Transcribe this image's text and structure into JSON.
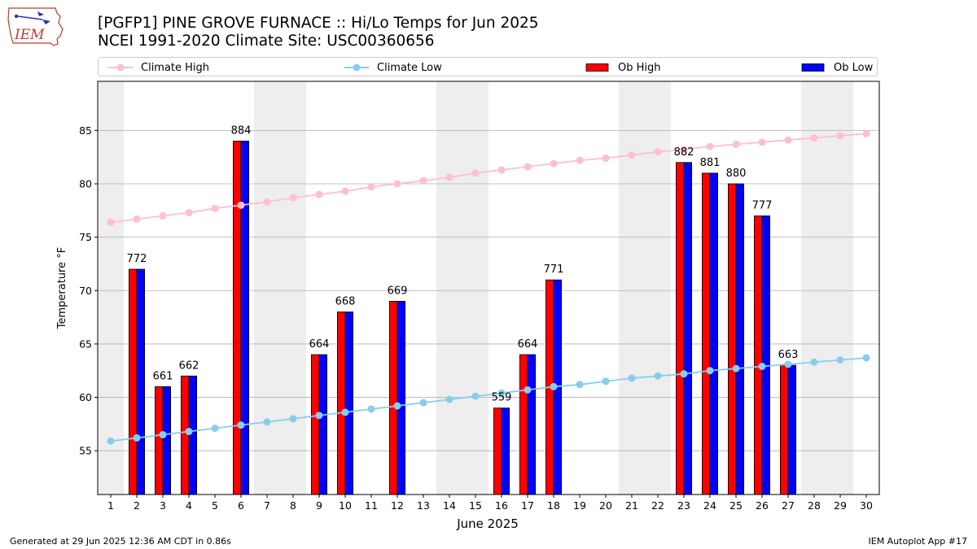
{
  "header": {
    "title_line1": "[PGFP1] PINE GROVE FURNACE :: Hi/Lo Temps for Jun 2025",
    "title_line2": "NCEI 1991-2020 Climate Site: USC00360656"
  },
  "logo": {
    "text": "IEM",
    "icon": "iowa-state-outline-logo"
  },
  "legend": {
    "items": [
      {
        "label": "Climate High",
        "kind": "line",
        "color": "#ffc0cb"
      },
      {
        "label": "Climate Low",
        "kind": "line",
        "color": "#87ceeb"
      },
      {
        "label": "Ob High",
        "kind": "bar",
        "color": "#ff0000"
      },
      {
        "label": "Ob Low",
        "kind": "bar",
        "color": "#0000ff"
      }
    ]
  },
  "footer": {
    "left": "Generated at 29 Jun 2025 12:36 AM CDT in 0.86s",
    "right": "IEM Autoplot App #17"
  },
  "chart_data": {
    "type": "bar",
    "xlabel": "June 2025",
    "ylabel": "Temperature °F",
    "ylim": [
      50.9,
      89.6
    ],
    "xlim": [
      0.5,
      30.5
    ],
    "grid": "horizontal",
    "legend_position": "top",
    "y_ticks": [
      55,
      60,
      65,
      70,
      75,
      80,
      85
    ],
    "days": [
      1,
      2,
      3,
      4,
      5,
      6,
      7,
      8,
      9,
      10,
      11,
      12,
      13,
      14,
      15,
      16,
      17,
      18,
      19,
      20,
      21,
      22,
      23,
      24,
      25,
      26,
      27,
      28,
      29,
      30
    ],
    "weekend_shading": [
      [
        0.5,
        1.5
      ],
      [
        6.5,
        8.5
      ],
      [
        13.5,
        15.5
      ],
      [
        20.5,
        22.5
      ],
      [
        27.5,
        29.5
      ]
    ],
    "shade_color": "#eeeeee",
    "climate_high": [
      76.4,
      76.7,
      77.0,
      77.3,
      77.7,
      78.0,
      78.3,
      78.7,
      79.0,
      79.3,
      79.7,
      80.0,
      80.3,
      80.6,
      81.0,
      81.3,
      81.6,
      81.9,
      82.2,
      82.4,
      82.7,
      83.0,
      83.2,
      83.5,
      83.7,
      83.9,
      84.1,
      84.3,
      84.5,
      84.7
    ],
    "climate_low": [
      55.9,
      56.2,
      56.5,
      56.8,
      57.1,
      57.4,
      57.7,
      58.0,
      58.3,
      58.6,
      58.9,
      59.2,
      59.5,
      59.8,
      60.1,
      60.4,
      60.7,
      61.0,
      61.2,
      61.5,
      61.8,
      62.0,
      62.2,
      62.5,
      62.7,
      62.9,
      63.1,
      63.3,
      63.5,
      63.7
    ],
    "series": [
      {
        "name": "Ob High",
        "color": "#ff0000",
        "values": [
          null,
          72,
          61,
          62,
          null,
          84,
          null,
          null,
          64,
          68,
          null,
          69,
          null,
          null,
          null,
          59,
          64,
          71,
          null,
          null,
          null,
          null,
          82,
          81,
          80,
          77,
          63,
          null,
          null,
          null
        ]
      },
      {
        "name": "Ob Low",
        "color": "#0000ff",
        "values": [
          null,
          72,
          61,
          62,
          null,
          84,
          null,
          null,
          64,
          68,
          null,
          69,
          null,
          null,
          null,
          59,
          64,
          71,
          null,
          null,
          null,
          null,
          82,
          81,
          80,
          77,
          63,
          null,
          null,
          null
        ]
      }
    ],
    "bar_labels": [
      null,
      "772",
      "661",
      "662",
      null,
      "884",
      null,
      null,
      "664",
      "668",
      null,
      "669",
      null,
      null,
      null,
      "559",
      "664",
      "771",
      null,
      null,
      null,
      null,
      "882",
      "881",
      "880",
      "777",
      "663",
      null,
      null,
      null
    ]
  }
}
